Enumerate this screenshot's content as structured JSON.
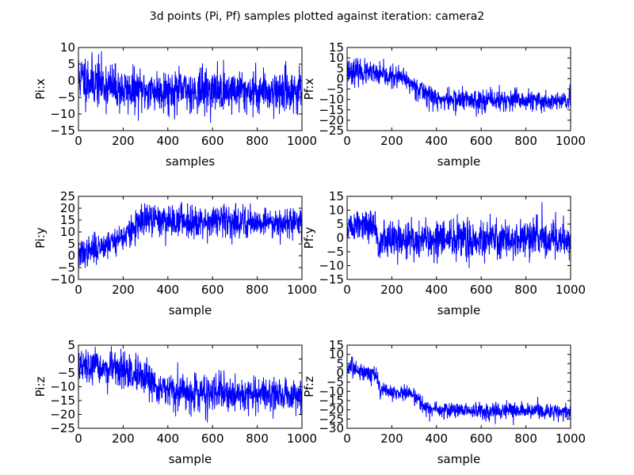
{
  "figure": {
    "title": "3d points (Pi, Pf) samples plotted against iteration: camera2"
  },
  "chart_data": [
    {
      "type": "line",
      "ylabel": "Pi:x",
      "xlabel": "samples",
      "xlim": [
        0,
        1000
      ],
      "ylim": [
        -15,
        10
      ],
      "xticks": [
        0,
        200,
        400,
        600,
        800,
        1000
      ],
      "yticks": [
        -15,
        -10,
        -5,
        0,
        5,
        10
      ],
      "series": [
        {
          "color": "#0000ff",
          "seed": 11,
          "segments": [
            [
              0,
              1,
              4.0
            ],
            [
              210,
              -3,
              3.2
            ],
            [
              1000,
              -3,
              3.2
            ]
          ]
        }
      ]
    },
    {
      "type": "line",
      "ylabel": "Pf:x",
      "xlabel": "sample",
      "xlim": [
        0,
        1000
      ],
      "ylim": [
        -25,
        15
      ],
      "xticks": [
        0,
        200,
        400,
        600,
        800,
        1000
      ],
      "yticks": [
        -25,
        -20,
        -15,
        -10,
        -5,
        0,
        5,
        10,
        15
      ],
      "series": [
        {
          "color": "#0000ff",
          "seed": 23,
          "segments": [
            [
              0,
              4,
              3.0
            ],
            [
              250,
              0,
              2.5
            ],
            [
              400,
              -10,
              2.8
            ],
            [
              1000,
              -11,
              2.6
            ]
          ]
        }
      ]
    },
    {
      "type": "line",
      "ylabel": "Pi:y",
      "xlabel": "sample",
      "xlim": [
        0,
        1000
      ],
      "ylim": [
        -10,
        25
      ],
      "xticks": [
        0,
        200,
        400,
        600,
        800,
        1000
      ],
      "yticks": [
        -10,
        -5,
        0,
        5,
        10,
        15,
        20,
        25
      ],
      "series": [
        {
          "color": "#0000ff",
          "seed": 37,
          "segments": [
            [
              0,
              0,
              3.0
            ],
            [
              200,
              8,
              3.0
            ],
            [
              300,
              15,
              3.5
            ],
            [
              1000,
              14,
              3.2
            ]
          ]
        }
      ]
    },
    {
      "type": "line",
      "ylabel": "Pf:y",
      "xlabel": "sample",
      "xlim": [
        0,
        1000
      ],
      "ylim": [
        -15,
        15
      ],
      "xticks": [
        0,
        200,
        400,
        600,
        800,
        1000
      ],
      "yticks": [
        -15,
        -10,
        -5,
        0,
        5,
        10,
        15
      ],
      "series": [
        {
          "color": "#0000ff",
          "seed": 51,
          "segments": [
            [
              0,
              4,
              3.0
            ],
            [
              130,
              4,
              3.0
            ],
            [
              131,
              -1,
              3.5
            ],
            [
              1000,
              0,
              3.4
            ]
          ]
        }
      ]
    },
    {
      "type": "line",
      "ylabel": "Pi:z",
      "xlabel": "sample",
      "xlim": [
        0,
        1000
      ],
      "ylim": [
        -25,
        5
      ],
      "xticks": [
        0,
        200,
        400,
        600,
        800,
        1000
      ],
      "yticks": [
        -25,
        -20,
        -15,
        -10,
        -5,
        0,
        5
      ],
      "series": [
        {
          "color": "#0000ff",
          "seed": 67,
          "segments": [
            [
              0,
              -3,
              3.0
            ],
            [
              200,
              -4,
              3.2
            ],
            [
              400,
              -12,
              3.2
            ],
            [
              1000,
              -13,
              3.0
            ]
          ]
        }
      ]
    },
    {
      "type": "line",
      "ylabel": "Pf:z",
      "xlabel": "sample",
      "xlim": [
        0,
        1000
      ],
      "ylim": [
        -30,
        15
      ],
      "xticks": [
        0,
        200,
        400,
        600,
        800,
        1000
      ],
      "yticks": [
        -30,
        -25,
        -20,
        -15,
        -10,
        -5,
        0,
        5,
        10,
        15
      ],
      "series": [
        {
          "color": "#0000ff",
          "seed": 83,
          "segments": [
            [
              0,
              3,
              2.5
            ],
            [
              130,
              -1,
              2.5
            ],
            [
              150,
              -10,
              2.0
            ],
            [
              290,
              -11,
              2.0
            ],
            [
              360,
              -20,
              2.3
            ],
            [
              1000,
              -21,
              2.3
            ]
          ]
        }
      ]
    }
  ]
}
